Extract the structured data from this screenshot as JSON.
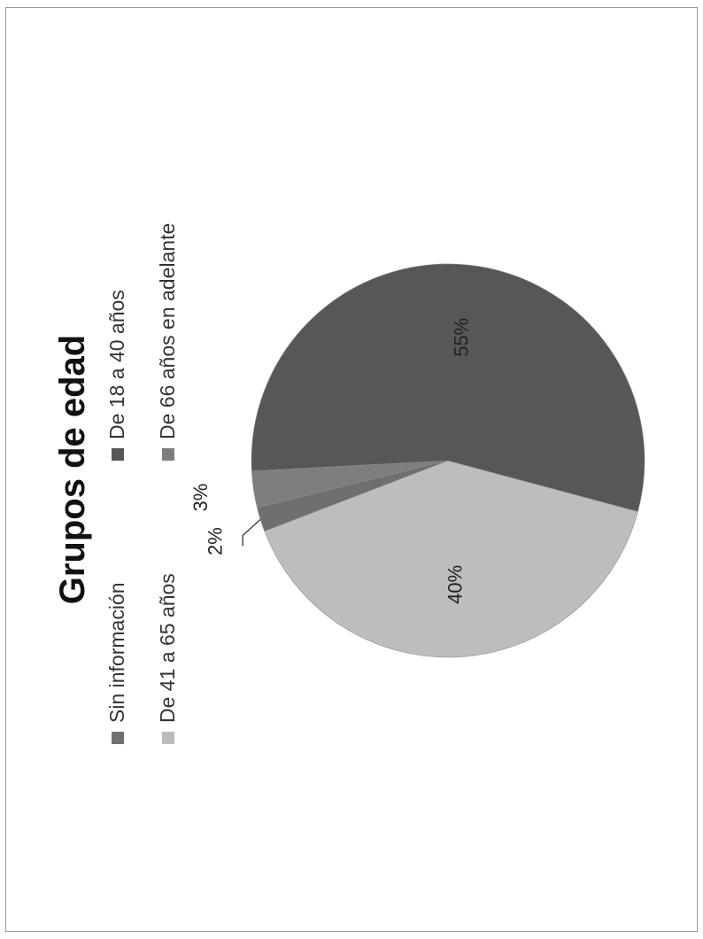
{
  "chart_data": {
    "type": "pie",
    "title": "Grupos de edad",
    "legend_position": "top",
    "orientation": "rotated-90-counterclockwise",
    "categories": [
      "Sin información",
      "De 18 a 40 años",
      "De 41 a 65 años",
      "De 66 años en adelante"
    ],
    "values": [
      2,
      55,
      40,
      3
    ],
    "data_labels": [
      "2%",
      "55%",
      "40%",
      "3%"
    ],
    "colors": [
      "#6f6f6f",
      "#575757",
      "#bdbdbd",
      "#7e7e7e"
    ]
  }
}
